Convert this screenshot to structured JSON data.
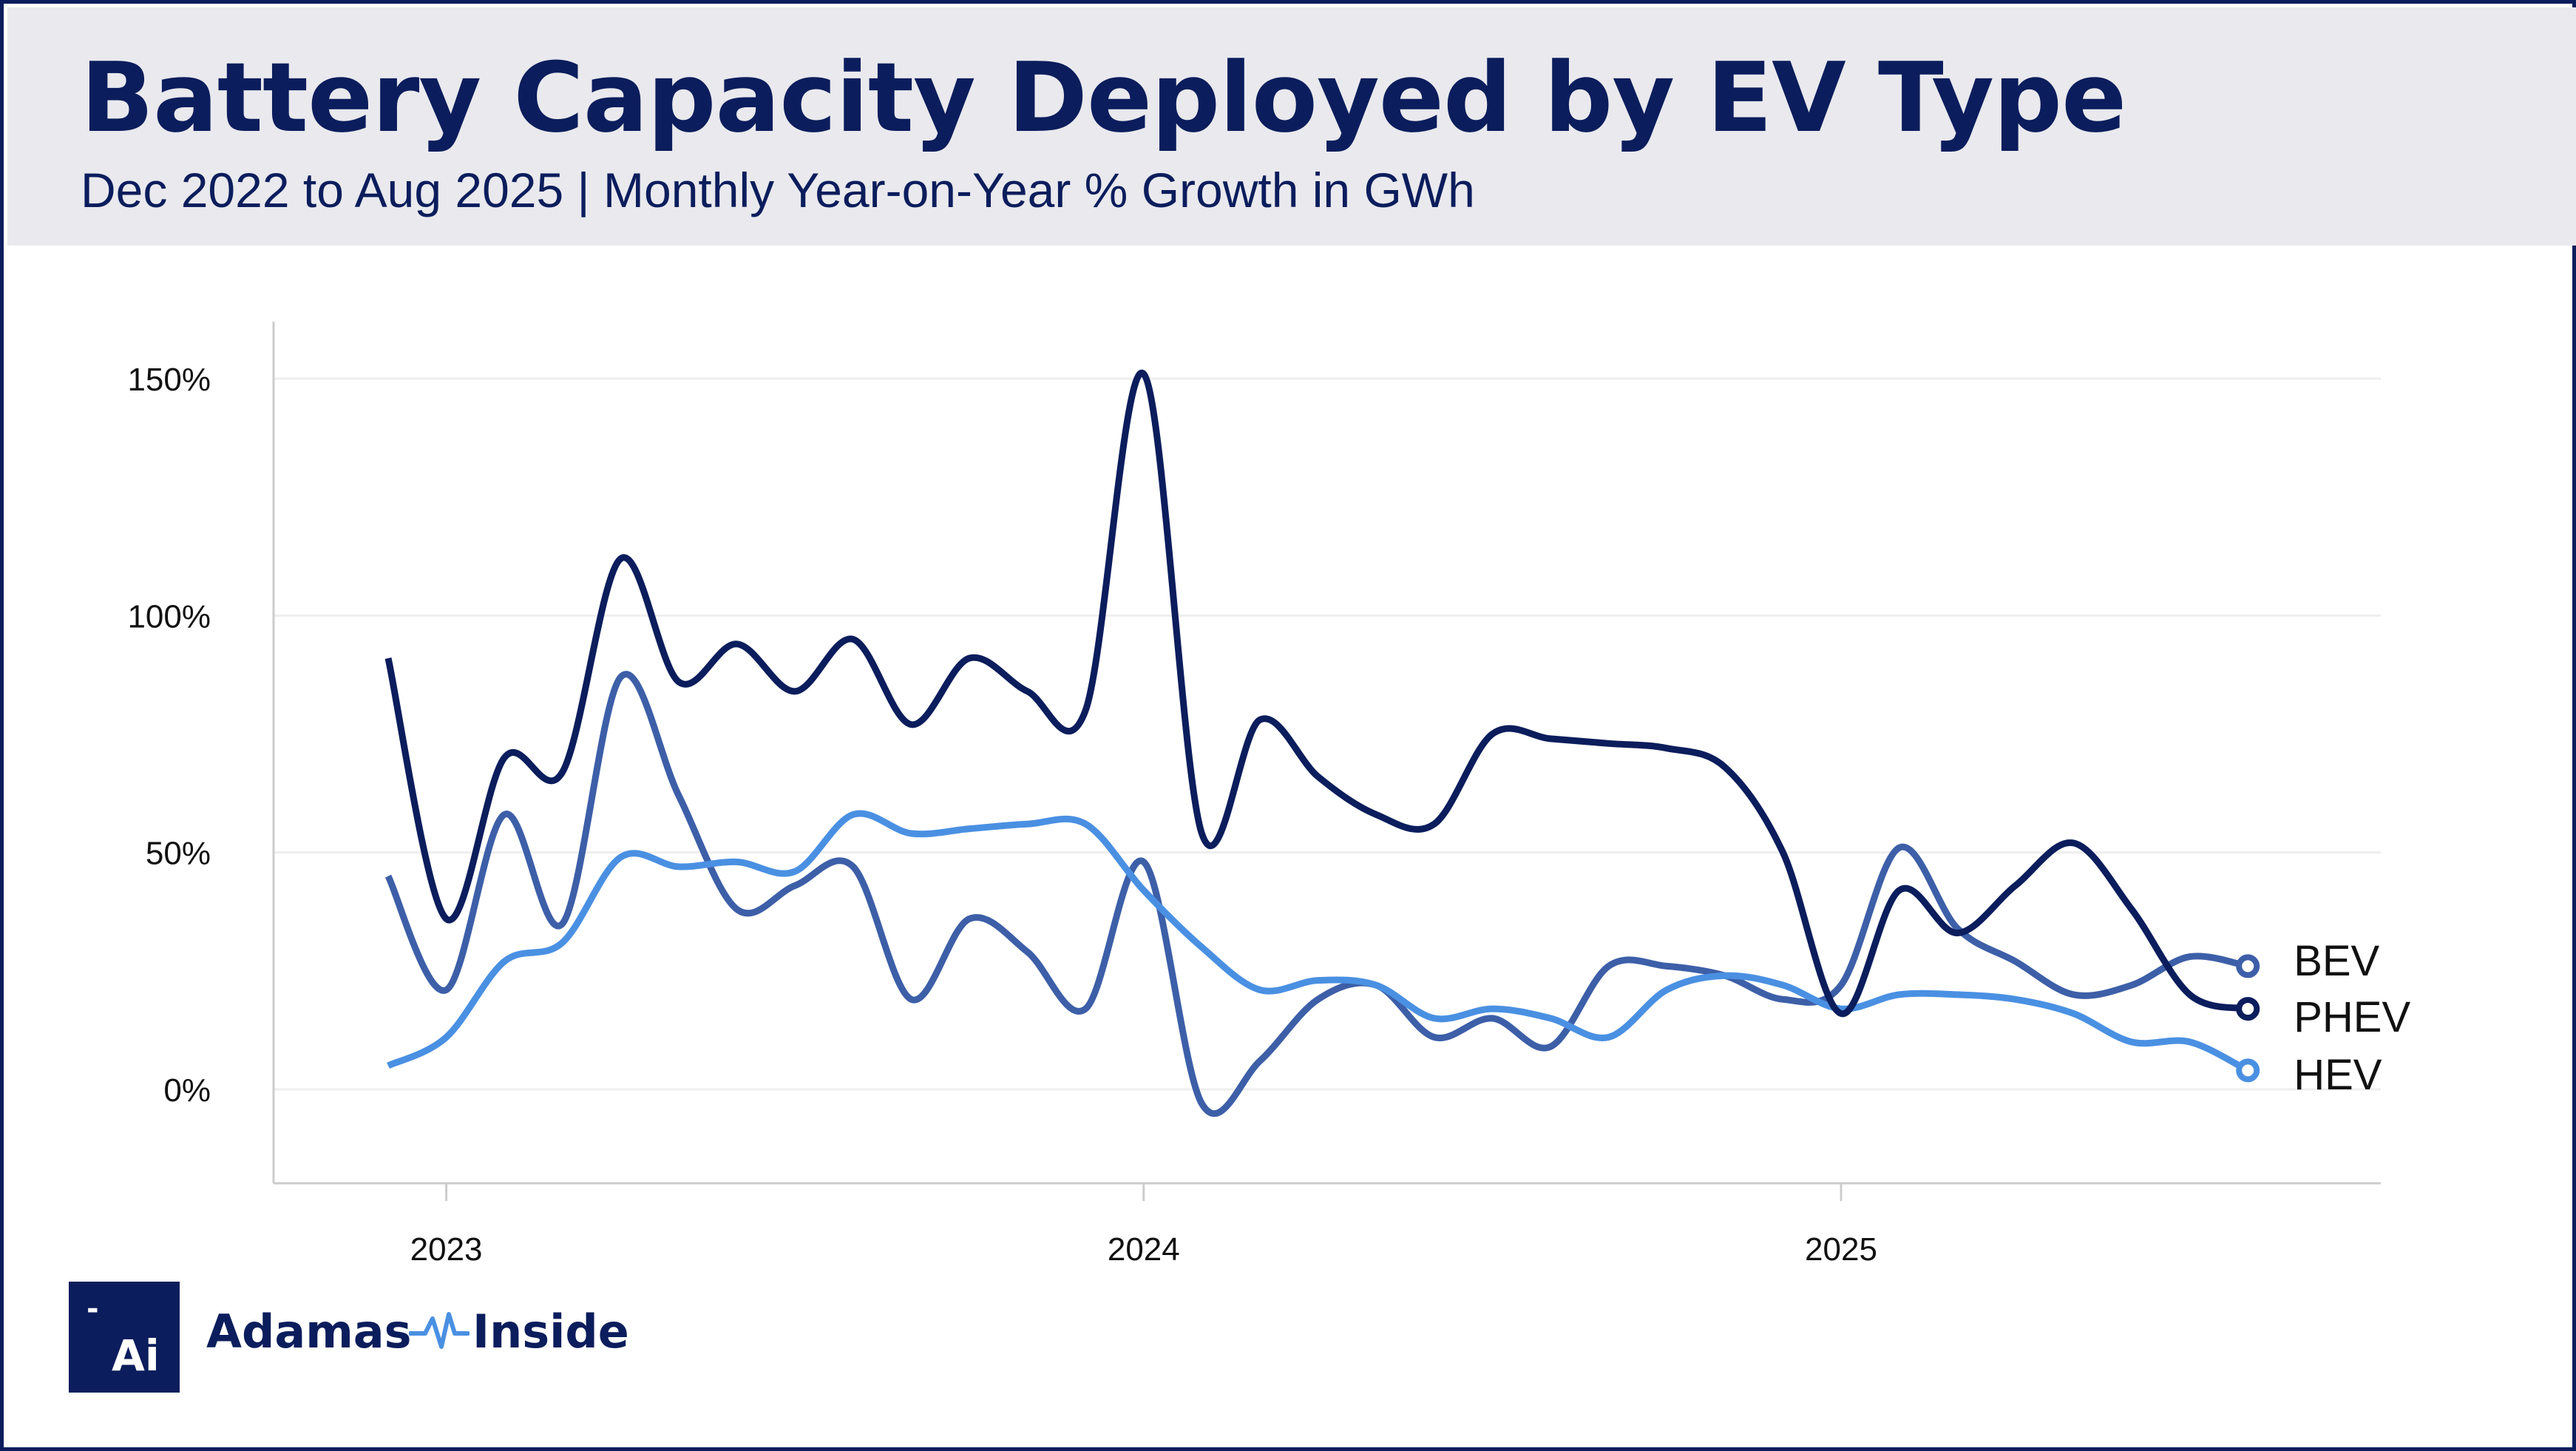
{
  "header": {
    "title": "Battery Capacity Deployed by EV Type",
    "subtitle": "Dec 2022 to Aug 2025 | Monthly Year-on-Year % Growth in GWh"
  },
  "brand": {
    "logo_dash": "-",
    "logo_text": "Ai",
    "name_part1": "Adamas",
    "name_part2": "Inside",
    "icon": "pulse-icon"
  },
  "colors": {
    "header_bg": "#e9e9ee",
    "title": "#0b1d5c",
    "grid": "#eeeeee",
    "axis": "#cccccc"
  },
  "chart_data": {
    "type": "line",
    "title": "Battery Capacity Deployed by EV Type",
    "subtitle": "Dec 2022 to Aug 2025 | Monthly Year-on-Year % Growth in GWh",
    "xlabel": "",
    "ylabel": "",
    "x": [
      "2022-12",
      "2023-01",
      "2023-02",
      "2023-03",
      "2023-04",
      "2023-05",
      "2023-06",
      "2023-07",
      "2023-08",
      "2023-09",
      "2023-10",
      "2023-11",
      "2023-12",
      "2024-01",
      "2024-02",
      "2024-03",
      "2024-04",
      "2024-05",
      "2024-06",
      "2024-07",
      "2024-08",
      "2024-09",
      "2024-10",
      "2024-11",
      "2024-12",
      "2025-01",
      "2025-02",
      "2025-03",
      "2025-04",
      "2025-05",
      "2025-06",
      "2025-07",
      "2025-08"
    ],
    "xtick_labels": [
      "2023",
      "2024",
      "2025"
    ],
    "xtick_positions": [
      "2023-01",
      "2024-01",
      "2025-01"
    ],
    "ylim": [
      -20,
      162
    ],
    "yticks": [
      0,
      50,
      100,
      150
    ],
    "ytick_labels": [
      "0%",
      "50%",
      "100%",
      "150%"
    ],
    "grid": true,
    "legend": "direct labels at line ends (right)",
    "series": [
      {
        "name": "BEV",
        "color": "#3d5fa8",
        "values": [
          45,
          21,
          58,
          35,
          87,
          62,
          38,
          43,
          47,
          19,
          36,
          29,
          17,
          48,
          -3,
          6,
          19,
          22,
          11,
          15,
          9,
          26,
          26,
          24,
          19,
          22,
          51,
          34,
          27,
          20,
          22,
          28,
          26
        ]
      },
      {
        "name": "PHEV",
        "color": "#0b1d5c",
        "values": [
          91,
          36,
          70,
          67,
          112,
          86,
          94,
          84,
          95,
          77,
          91,
          84,
          80,
          151,
          54,
          78,
          66,
          58,
          56,
          75,
          74,
          73,
          72,
          68,
          50,
          16,
          42,
          33,
          43,
          52,
          38,
          20,
          17
        ]
      },
      {
        "name": "HEV",
        "color": "#4a90e2",
        "values": [
          5,
          11,
          27,
          31,
          49,
          47,
          48,
          46,
          58,
          54,
          55,
          56,
          56,
          42,
          30,
          21,
          23,
          22,
          15,
          17,
          15,
          11,
          21,
          24,
          22,
          17,
          20,
          20,
          19,
          16,
          10,
          10,
          4
        ]
      }
    ]
  }
}
